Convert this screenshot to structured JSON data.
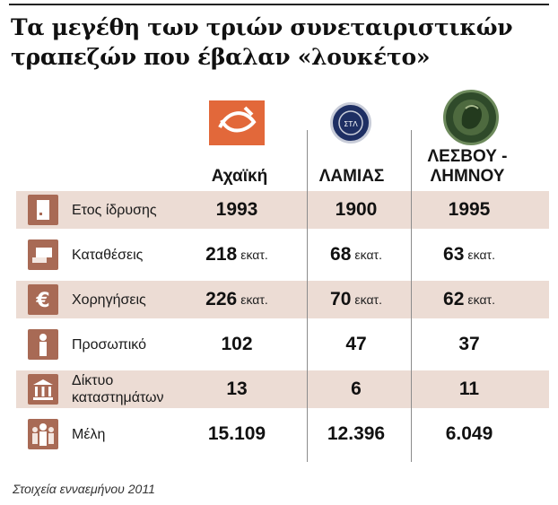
{
  "title": "Τα μεγέθη των τριών συνεταιριστικών τραπεζών που έβαλαν «λουκέτο»",
  "columns": [
    "Αχαϊκή",
    "ΛΑΜΙΑΣ",
    "ΛΕΣΒΟΥ - ΛΗΜΝΟΥ"
  ],
  "rows": [
    {
      "label": "Ετος ίδρυσης",
      "icon": "calendar-icon",
      "values": [
        "1993",
        "1900",
        "1995"
      ],
      "unit": ""
    },
    {
      "label": "Καταθέσεις",
      "icon": "cash-hand-icon",
      "values": [
        "218",
        "68",
        "63"
      ],
      "unit": "εκατ."
    },
    {
      "label": "Χορηγήσεις",
      "icon": "euro-icon",
      "values": [
        "226",
        "70",
        "62"
      ],
      "unit": "εκατ."
    },
    {
      "label": "Προσωπικό",
      "icon": "person-icon",
      "values": [
        "102",
        "47",
        "37"
      ],
      "unit": ""
    },
    {
      "label_line1": "Δίκτυο",
      "label_line2": "καταστημάτων",
      "icon": "bank-building-icon",
      "values": [
        "13",
        "6",
        "11"
      ],
      "unit": ""
    },
    {
      "label": "Μέλη",
      "icon": "group-icon",
      "values": [
        "15.109",
        "12.396",
        "6.049"
      ],
      "unit": ""
    }
  ],
  "logos": {
    "lamias_text": "ΣΤΛ"
  },
  "colors": {
    "row_shade": "#ecdcd4",
    "icon_bg": "#a86a55",
    "achaiki_orange": "#e2683a"
  },
  "footnote": "Στοιχεία ενναεμήνου 2011"
}
